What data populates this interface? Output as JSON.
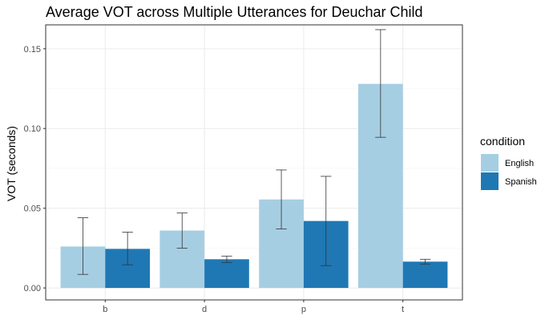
{
  "chart_data": {
    "type": "bar",
    "title": "Average VOT across Multiple Utterances for Deuchar Child",
    "xlabel": "",
    "ylabel": "VOT (seconds)",
    "categories": [
      "b",
      "d",
      "p",
      "t"
    ],
    "ylim": [
      -0.0075,
      0.165
    ],
    "yticks": [
      0.0,
      0.05,
      0.1,
      0.15
    ],
    "ytick_labels": [
      "0.00",
      "0.05",
      "0.10",
      "0.15"
    ],
    "grid": true,
    "legend": {
      "title": "condition",
      "placement": "right"
    },
    "series": [
      {
        "name": "English",
        "color": "#a6cee3",
        "values": [
          0.026,
          0.036,
          0.0555,
          0.128
        ],
        "error_low": [
          0.0085,
          0.025,
          0.037,
          0.0945
        ],
        "error_high": [
          0.044,
          0.047,
          0.074,
          0.162
        ]
      },
      {
        "name": "Spanish",
        "color": "#1f78b4",
        "values": [
          0.0245,
          0.018,
          0.042,
          0.0165
        ],
        "error_low": [
          0.0145,
          0.016,
          0.014,
          0.015
        ],
        "error_high": [
          0.035,
          0.02,
          0.07,
          0.018
        ]
      }
    ]
  }
}
